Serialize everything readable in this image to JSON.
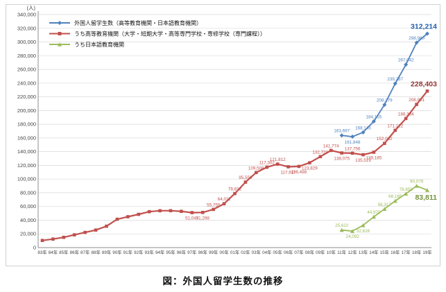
{
  "figure": {
    "caption": "図：外国人留学生数の推移",
    "y_axis_unit": "(人)"
  },
  "chart_data": {
    "type": "line",
    "title": "図：外国人留学生数の推移",
    "xlabel": "",
    "ylabel": "(人)",
    "ylim": [
      0,
      340000
    ],
    "ytick_step": 20000,
    "grid": true,
    "legend_position": "top-left-inside",
    "categories": [
      "83年",
      "84年",
      "85年",
      "86年",
      "87年",
      "88年",
      "89年",
      "90年",
      "91年",
      "92年",
      "93年",
      "94年",
      "95年",
      "96年",
      "97年",
      "98年",
      "99年",
      "00年",
      "01年",
      "02年",
      "03年",
      "04年",
      "05年",
      "06年",
      "07年",
      "08年",
      "09年",
      "10年",
      "11年",
      "12年",
      "13年",
      "14年",
      "15年",
      "16年",
      "17年",
      "18年",
      "19年"
    ],
    "series": [
      {
        "name": "外国人留学生数（高等教育機関・日本語教育機関）",
        "color": "#4f81bd",
        "end_label_color": "#1f5fa9",
        "marker": "diamond",
        "values": [
          null,
          null,
          null,
          null,
          null,
          null,
          null,
          null,
          null,
          null,
          null,
          null,
          null,
          null,
          null,
          null,
          null,
          null,
          null,
          null,
          null,
          null,
          null,
          null,
          null,
          null,
          null,
          null,
          163697,
          161848,
          168145,
          184155,
          208379,
          239287,
          267042,
          298980,
          312214
        ]
      },
      {
        "name": "うち高等教育機関（大学・短期大学・高等専門学校・専修学校（専門課程））",
        "color": "#c0504d",
        "end_label_color": "#953735",
        "marker": "square",
        "labeled_from": 14,
        "values": [
          10428,
          12410,
          15009,
          18631,
          22154,
          25643,
          31251,
          41347,
          45066,
          48561,
          52405,
          53787,
          53847,
          52921,
          51047,
          51298,
          55755,
          64011,
          78812,
          95550,
          109508,
          117302,
          121812,
          117927,
          118498,
          123829,
          132720,
          141774,
          138075,
          137756,
          135519,
          139185,
          152062,
          171122,
          188384,
          208901,
          228403
        ]
      },
      {
        "name": "うち日本語教育機関",
        "color": "#9bbb59",
        "end_label_color": "#76923c",
        "marker": "triangle",
        "values": [
          null,
          null,
          null,
          null,
          null,
          null,
          null,
          null,
          null,
          null,
          null,
          null,
          null,
          null,
          null,
          null,
          null,
          null,
          null,
          null,
          null,
          null,
          null,
          null,
          null,
          null,
          null,
          null,
          25622,
          24092,
          32626,
          44970,
          56317,
          68165,
          78658,
          90079,
          83811
        ]
      }
    ]
  }
}
